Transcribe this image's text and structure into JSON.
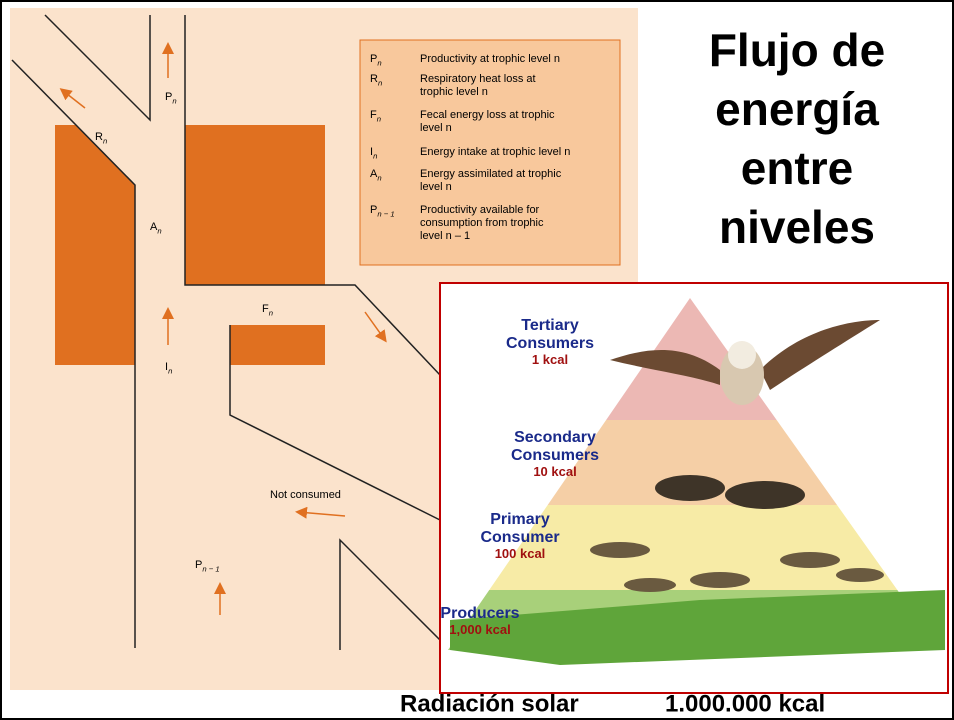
{
  "title": {
    "lines": [
      "Flujo de",
      "energía",
      "entre",
      "niveles"
    ]
  },
  "legend": [
    {
      "symbol": "P",
      "sub": "n",
      "text": [
        "Productivity at trophic level n"
      ]
    },
    {
      "symbol": "R",
      "sub": "n",
      "text": [
        "Respiratory heat loss at",
        "trophic level n"
      ]
    },
    {
      "symbol": "F",
      "sub": "n",
      "text": [
        "Fecal energy loss at trophic",
        "level n"
      ]
    },
    {
      "symbol": "I",
      "sub": "n",
      "text": [
        "Energy intake at trophic level n"
      ]
    },
    {
      "symbol": "A",
      "sub": "n",
      "text": [
        "Energy assimilated at trophic",
        "level n"
      ]
    },
    {
      "symbol": "P",
      "sub": "n − 1",
      "text": [
        "Productivity available for",
        "consumption from trophic",
        "level n – 1"
      ]
    }
  ],
  "diagram": {
    "labels": [
      {
        "base": "P",
        "sub": "n"
      },
      {
        "base": "R",
        "sub": "n"
      },
      {
        "base": "A",
        "sub": "n"
      },
      {
        "base": "F",
        "sub": "n"
      },
      {
        "base": "I",
        "sub": "n"
      },
      {
        "base": "P",
        "sub": "n − 1"
      }
    ],
    "note": "Not consumed"
  },
  "pyramid": {
    "levels": [
      {
        "name": [
          "Tertiary",
          "Consumers"
        ],
        "energy": "1 kcal"
      },
      {
        "name": [
          "Secondary",
          "Consumers"
        ],
        "energy": "10 kcal"
      },
      {
        "name": [
          "Primary",
          "Consumer"
        ],
        "energy": "100 kcal"
      },
      {
        "name": [
          "Producers"
        ],
        "energy": "1,000 kcal"
      }
    ]
  },
  "footer": {
    "source": "Radiación solar",
    "energy": "1.000.000 kcal"
  }
}
